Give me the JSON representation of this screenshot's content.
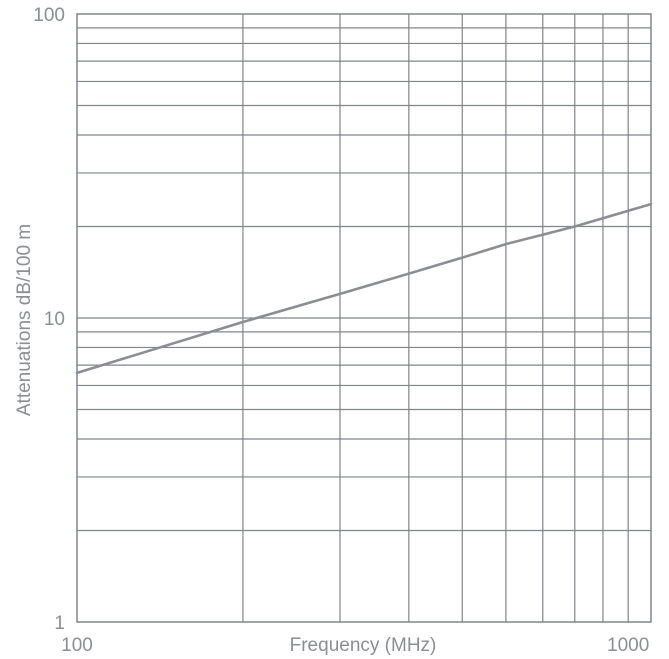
{
  "chart_data": {
    "type": "line",
    "title": "",
    "xlabel": "Frequency (MHz)",
    "ylabel": "Attenuations dB/100 m",
    "x_scale": "log",
    "y_scale": "log",
    "xlim": [
      100,
      1100
    ],
    "ylim": [
      1,
      100
    ],
    "grid": true,
    "x_tick_labels": [
      {
        "value": 100,
        "label": "100"
      },
      {
        "value": 1000,
        "label": "1000"
      }
    ],
    "y_tick_labels": [
      {
        "value": 1,
        "label": "1"
      },
      {
        "value": 10,
        "label": "10"
      },
      {
        "value": 100,
        "label": "100"
      }
    ],
    "x_gridlines": [
      200,
      300,
      400,
      500,
      600,
      700,
      800,
      900,
      1000
    ],
    "y_gridlines": [
      2,
      3,
      4,
      5,
      6,
      7,
      8,
      9,
      10,
      20,
      30,
      40,
      50,
      60,
      70,
      80,
      90
    ],
    "series": [
      {
        "x": [
          100,
          200,
          300,
          400,
          500,
          600,
          800,
          1100
        ],
        "y": [
          6.6,
          9.7,
          12.0,
          14.0,
          15.8,
          17.5,
          20.0,
          23.7
        ]
      }
    ],
    "colors": {
      "grid": "#7f858c",
      "line": "#8a8f96",
      "text": "#8a8f96"
    }
  }
}
